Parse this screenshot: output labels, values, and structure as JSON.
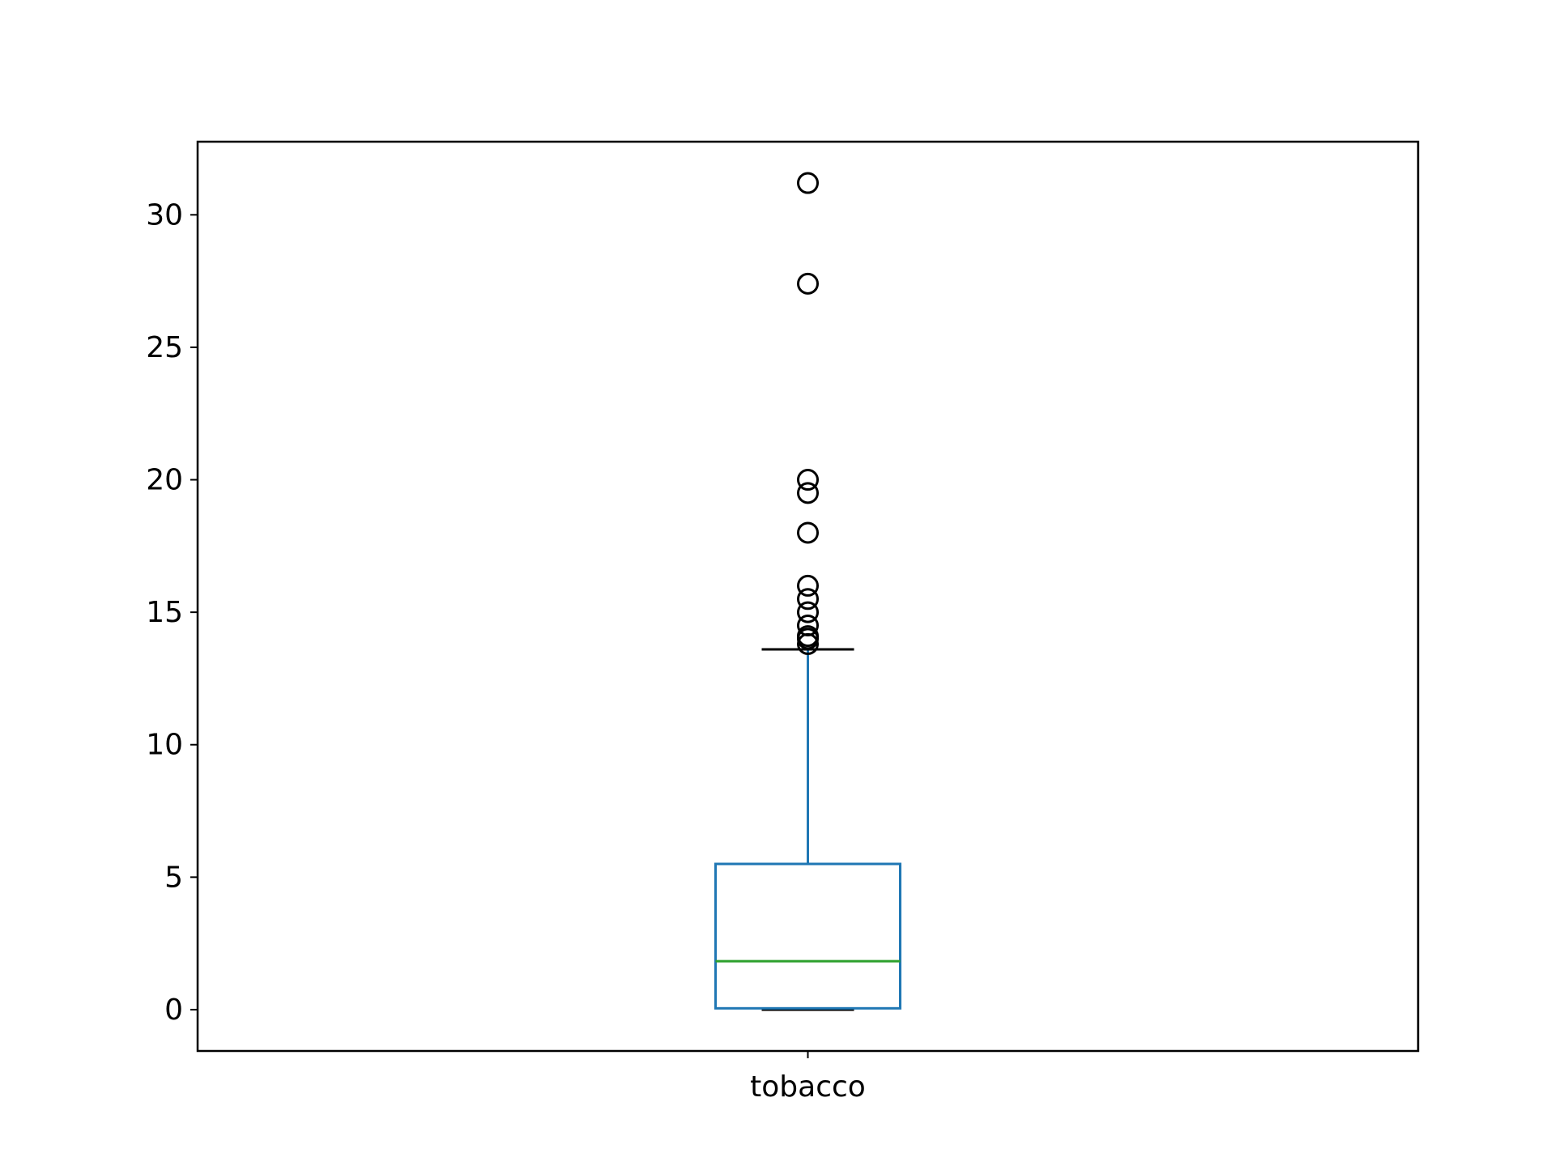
{
  "chart_data": {
    "type": "box",
    "categories": [
      "tobacco"
    ],
    "ylim": [
      -1.56,
      32.76
    ],
    "yticks": [
      "0",
      "5",
      "10",
      "15",
      "20",
      "25",
      "30"
    ],
    "grid": false,
    "legend": "none",
    "title": "",
    "xlabel": "",
    "ylabel": "",
    "boxes": [
      {
        "name": "tobacco",
        "whisker_low": 0.0,
        "q1": 0.05,
        "median": 1.83,
        "q3": 5.5,
        "whisker_high": 13.6,
        "outliers": [
          13.8,
          14.0,
          14.1,
          14.5,
          15.0,
          15.5,
          16.0,
          18.0,
          19.5,
          20.0,
          27.4,
          31.2
        ]
      }
    ],
    "colors": {
      "box": "#1f77b4",
      "whisker": "#1f77b4",
      "cap": "#000000",
      "median": "#2ca02c",
      "flier": "#000000",
      "axes": "#000000"
    }
  }
}
